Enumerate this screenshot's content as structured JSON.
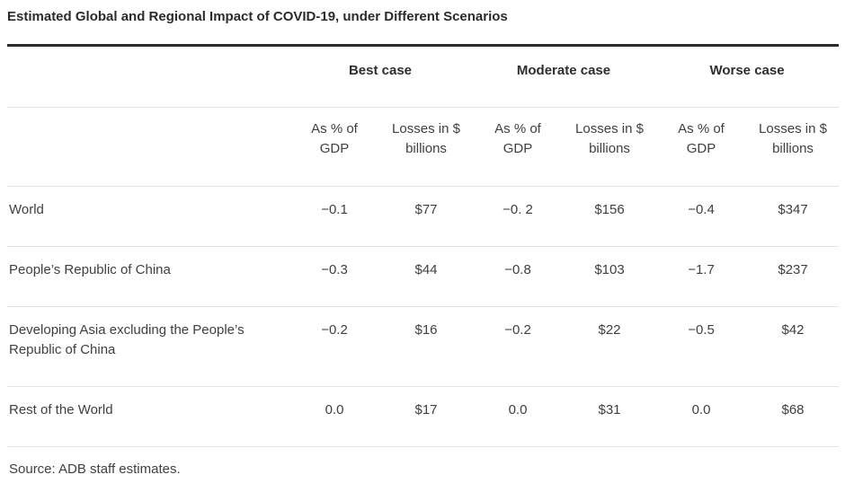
{
  "page": {
    "title": "Estimated Global and Regional Impact of COVID-19, under Different Scenarios"
  },
  "table": {
    "scenario_headers": [
      "Best case",
      "Moderate case",
      "Worse case"
    ],
    "metric_headers": [
      "As % of GDP",
      "Losses in $ billions"
    ],
    "rows": [
      {
        "label": "World",
        "values": [
          "−0.1",
          "$77",
          "−0. 2",
          "$156",
          "−0.4",
          "$347"
        ]
      },
      {
        "label": "People’s Republic of China",
        "values": [
          "−0.3",
          "$44",
          "−0.8",
          "$103",
          "−1.7",
          "$237"
        ]
      },
      {
        "label": "Developing Asia excluding the People’s Republic of China",
        "values": [
          "−0.2",
          "$16",
          "−0.2",
          "$22",
          "−0.5",
          "$42"
        ]
      },
      {
        "label": "Rest of the World",
        "values": [
          "0.0",
          "$17",
          "0.0",
          "$31",
          "0.0",
          "$68"
        ]
      }
    ],
    "source": "Source: ADB staff estimates."
  },
  "colors": {
    "title_text": "#2b2b2b",
    "body_text": "#404040",
    "thick_rule": "#2b2b2b",
    "thin_rule": "#e2e2e2",
    "background": "#ffffff"
  }
}
